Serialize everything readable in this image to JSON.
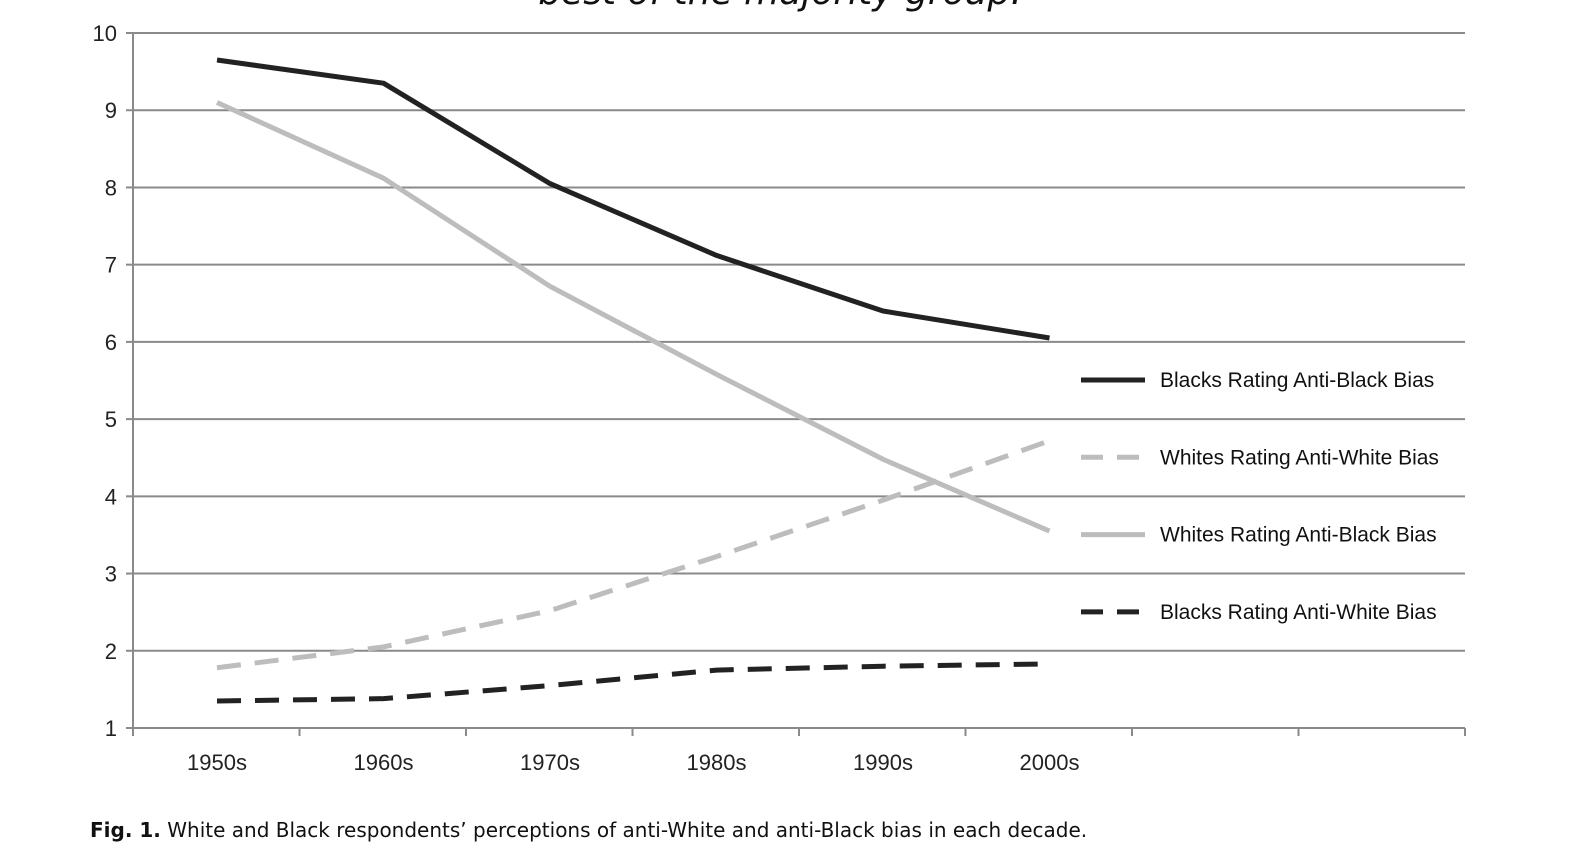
{
  "chart_data": {
    "type": "line",
    "title": "best of the majority group.",
    "xlabel": "",
    "ylabel": "",
    "categories": [
      "1950s",
      "1960s",
      "1970s",
      "1980s",
      "1990s",
      "2000s"
    ],
    "ylim": [
      1,
      10
    ],
    "yticks": [
      1,
      2,
      3,
      4,
      5,
      6,
      7,
      8,
      9,
      10
    ],
    "grid": true,
    "legend_position": "right",
    "series": [
      {
        "name": "Blacks Rating Anti-Black Bias",
        "values": [
          9.65,
          9.35,
          8.05,
          7.12,
          6.4,
          6.05
        ],
        "color": "#222222",
        "dashed": false
      },
      {
        "name": "Whites Rating Anti-White Bias",
        "values": [
          1.78,
          2.05,
          2.52,
          3.22,
          3.95,
          4.72
        ],
        "color": "#bdbdbd",
        "dashed": true
      },
      {
        "name": "Whites Rating Anti-Black Bias",
        "values": [
          9.1,
          8.12,
          6.72,
          5.58,
          4.48,
          3.55
        ],
        "color": "#bdbdbd",
        "dashed": false
      },
      {
        "name": "Blacks Rating Anti-White Bias",
        "values": [
          1.35,
          1.38,
          1.55,
          1.75,
          1.8,
          1.83
        ],
        "color": "#222222",
        "dashed": true
      }
    ]
  },
  "caption": {
    "fig_label": "Fig. 1.",
    "text": "White and Black respondents’ perceptions of anti-White and anti-Black bias in each decade."
  }
}
